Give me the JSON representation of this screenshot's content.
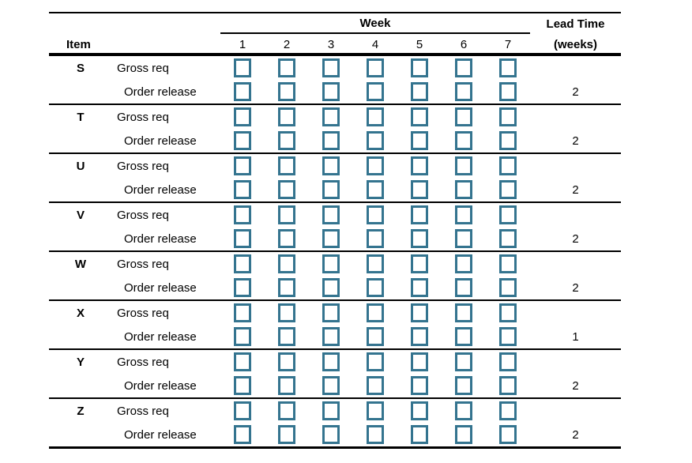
{
  "table": {
    "header": {
      "item_label": "Item",
      "week_label": "Week",
      "week_numbers": [
        "1",
        "2",
        "3",
        "4",
        "5",
        "6",
        "7"
      ],
      "lead_time_label": "Lead Time",
      "lead_time_unit": "(weeks)"
    },
    "row_labels": {
      "gross": "Gross req",
      "release": "Order release"
    },
    "weeks_count": 7,
    "items": [
      {
        "name": "S",
        "lead_time": "2"
      },
      {
        "name": "T",
        "lead_time": "2"
      },
      {
        "name": "U",
        "lead_time": "2"
      },
      {
        "name": "V",
        "lead_time": "2"
      },
      {
        "name": "W",
        "lead_time": "2"
      },
      {
        "name": "X",
        "lead_time": "1"
      },
      {
        "name": "Y",
        "lead_time": "2"
      },
      {
        "name": "Z",
        "lead_time": "2"
      }
    ]
  },
  "colors": {
    "box_border": "#34748f",
    "line": "#000000",
    "background": "#ffffff"
  }
}
